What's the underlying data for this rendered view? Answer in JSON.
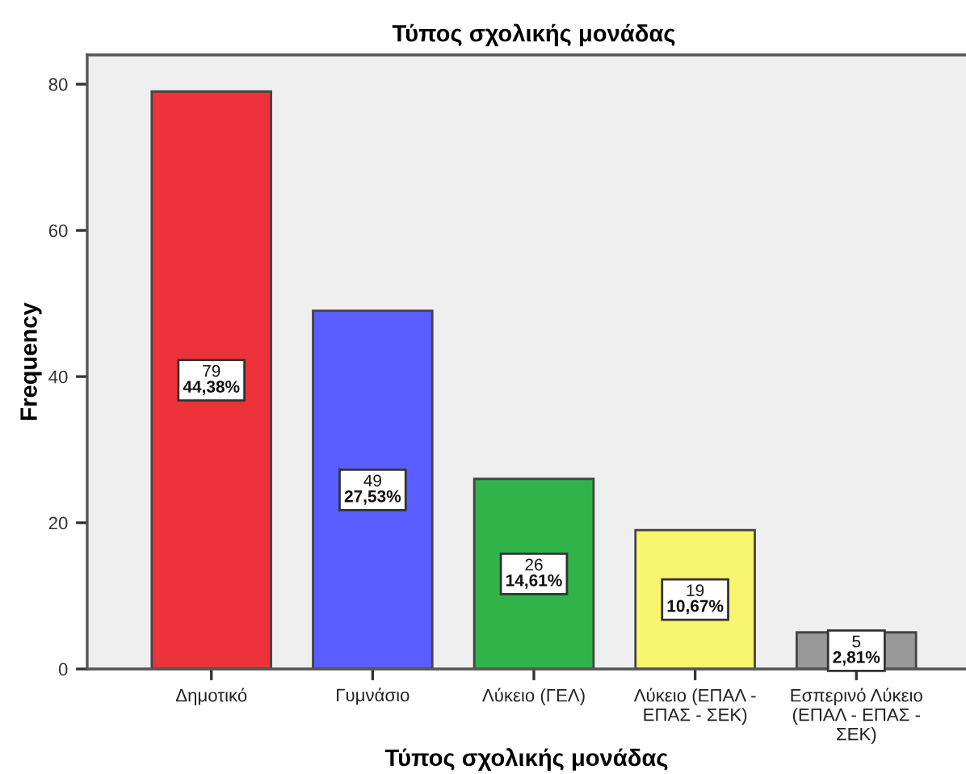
{
  "chart_data": {
    "type": "bar",
    "title": "Τύπος σχολικής μονάδας",
    "xlabel": "Τύπος σχολικής μονάδας",
    "ylabel": "Frequency",
    "categories": [
      "Δημοτικό",
      "Γυμνάσιο",
      "Λύκειο (ΓΕΛ)",
      "Λύκειο (ΕΠΑΛ -\nΕΠΑΣ - ΣΕΚ)",
      "Εσπερινό Λύκειο\n(ΕΠΑΛ - ΕΠΑΣ -\nΣΕΚ)"
    ],
    "values": [
      79,
      49,
      26,
      19,
      5
    ],
    "colors": [
      "#ee3239",
      "#5a5dff",
      "#30b44a",
      "#faf56e",
      "#999999"
    ],
    "value_labels": [
      "79\n44,38%",
      "49\n27,53%",
      "26\n14,61%",
      "19\n10,67%",
      "5\n2,81%"
    ],
    "ylim": [
      0,
      84
    ],
    "yticks": [
      0,
      20,
      40,
      60,
      80
    ]
  }
}
